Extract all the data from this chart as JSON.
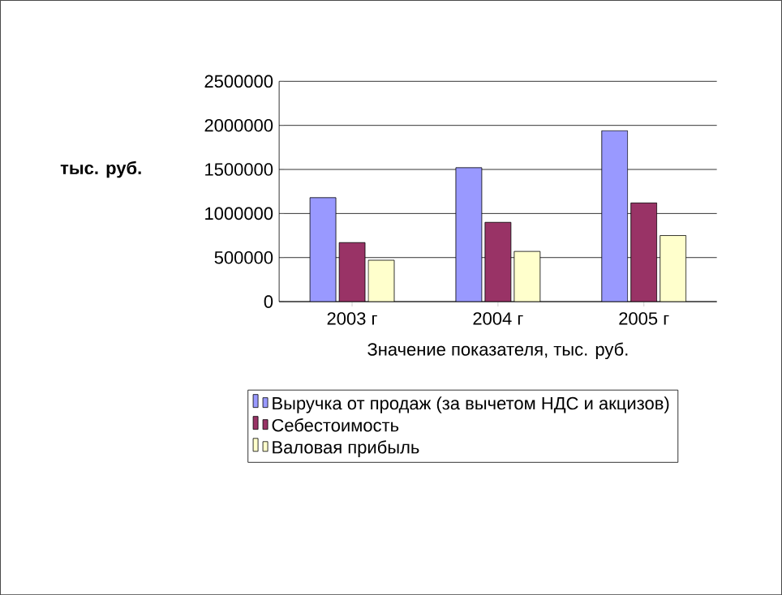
{
  "chart_data": {
    "type": "bar",
    "ylabel": "тыс. руб.",
    "xlabel": "Значение показателя, тыс. руб.",
    "categories": [
      "2003 г",
      "2004 г",
      "2005 г"
    ],
    "series": [
      {
        "name": "Выручка от продаж (за вычетом НДС и акцизов)",
        "color": "#9999ff",
        "values": [
          1180000,
          1520000,
          1940000
        ]
      },
      {
        "name": "Себестоимость",
        "color": "#993366",
        "values": [
          670000,
          900000,
          1120000
        ]
      },
      {
        "name": "Валовая прибыль",
        "color": "#ffffcc",
        "values": [
          470000,
          570000,
          750000
        ]
      }
    ],
    "ylim": [
      0,
      2500000
    ],
    "yticks": [
      0,
      500000,
      1000000,
      1500000,
      2000000,
      2500000
    ],
    "grid": "y",
    "legend": "bottom"
  }
}
